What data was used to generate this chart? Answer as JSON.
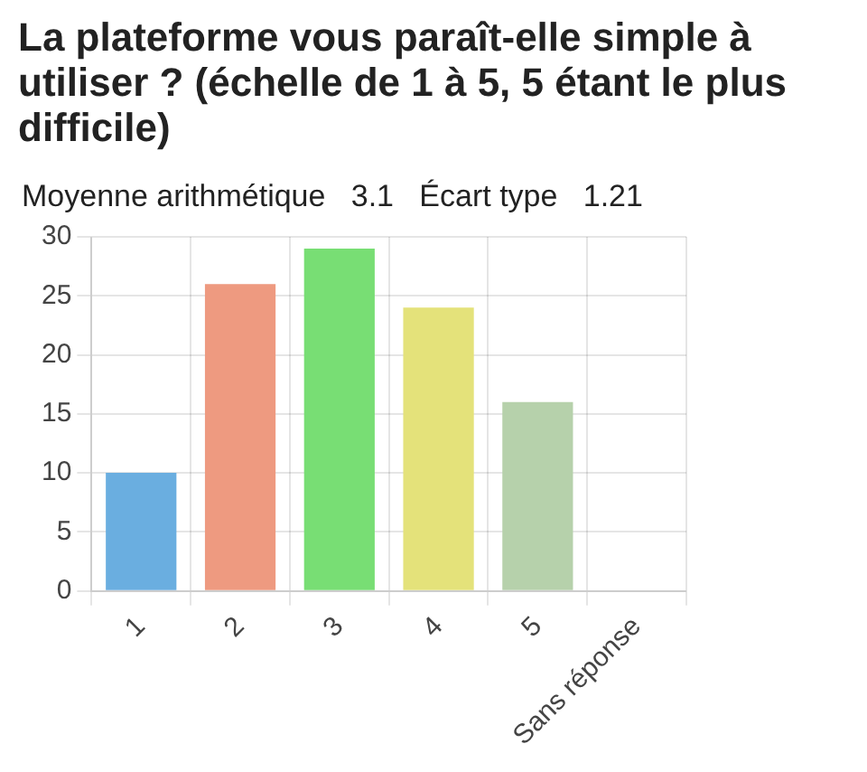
{
  "chart_data": {
    "type": "bar",
    "title": "La plateforme vous paraît-elle simple à utiliser ? (échelle de 1 à 5, 5 étant le plus difficile)",
    "subtitle": "Moyenne arithmétique   3.1   Écart type   1.21",
    "categories": [
      "1",
      "2",
      "3",
      "4",
      "5",
      "Sans réponse"
    ],
    "values": [
      10,
      26,
      29,
      24,
      16,
      0
    ],
    "colors": [
      "#6aaee0",
      "#ee9a80",
      "#78de74",
      "#e4e27a",
      "#b6d1ab",
      "#cccccc"
    ],
    "ylim": [
      0,
      30
    ],
    "yticks": [
      0,
      5,
      10,
      15,
      20,
      25,
      30
    ],
    "grid": true
  }
}
